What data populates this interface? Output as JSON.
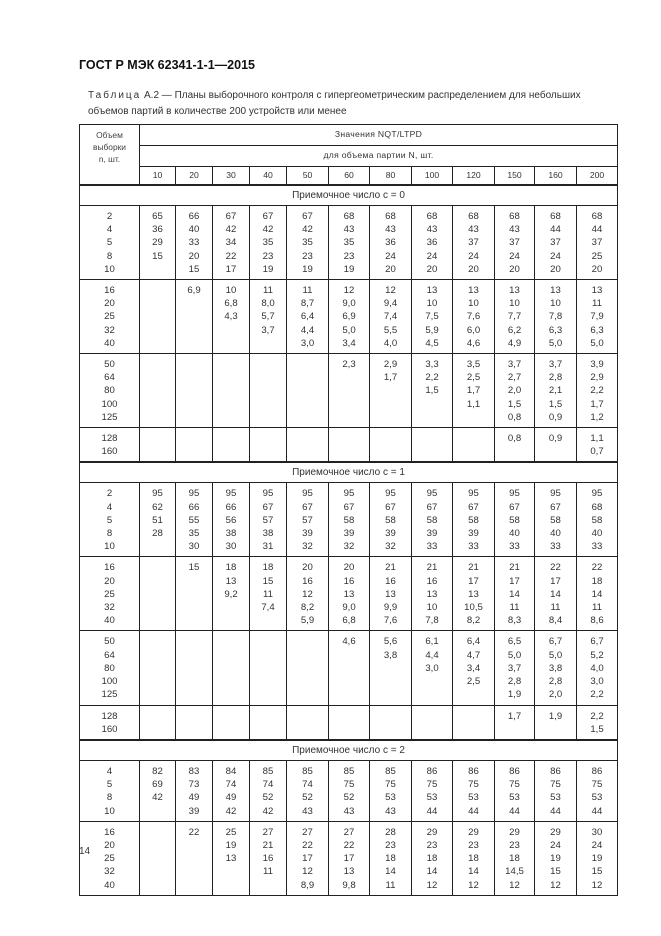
{
  "document": {
    "title": "ГОСТ Р МЭК 62341-1-1—2015",
    "caption_prefix": "Таблица",
    "caption_rest": " А.2 — Планы выборочного контроля с гипергеометрическим распределением для небольших объемов партий в количестве 200 устройств или менее",
    "page_number": "14"
  },
  "table": {
    "first_header": "Объем\nвыборки\nn, шт.",
    "header_top": "Значения NQT/LTPD",
    "header_sub": "для объема партии N, шт.",
    "lot_sizes": [
      "10",
      "20",
      "30",
      "40",
      "50",
      "60",
      "80",
      "100",
      "120",
      "150",
      "160",
      "200"
    ],
    "sections": [
      {
        "label": "Приемочное число c = 0",
        "groups": [
          {
            "n": "2\n4\n5\n8\n10",
            "cells": [
              "65\n36\n29\n15",
              "66\n40\n33\n20\n15",
              "67\n42\n34\n22\n17",
              "67\n42\n35\n23\n19",
              "67\n42\n35\n23\n19",
              "68\n43\n35\n23\n19",
              "68\n43\n36\n24\n20",
              "68\n43\n36\n24\n20",
              "68\n43\n37\n24\n20",
              "68\n43\n37\n24\n20",
              "68\n44\n37\n24\n20",
              "68\n44\n37\n25\n20"
            ]
          },
          {
            "n": "16\n20\n25\n32\n40",
            "cells": [
              "",
              "6,9",
              "10\n6,8\n4,3",
              "11\n8,0\n5,7\n3,7",
              "11\n8,7\n6,4\n4,4\n3,0",
              "12\n9,0\n6,9\n5,0\n3,4",
              "12\n9,4\n7,4\n5,5\n4,0",
              "13\n10\n7,5\n5,9\n4,5",
              "13\n10\n7,6\n6,0\n4,6",
              "13\n10\n7,7\n6,2\n4,9",
              "13\n10\n7,8\n6,3\n5,0",
              "13\n11\n7,9\n6,3\n5,0"
            ]
          },
          {
            "n": "50\n64\n80\n100\n125",
            "cells": [
              "",
              "",
              "",
              "",
              "",
              "2,3",
              "2,9\n1,7",
              "3,3\n2,2\n1,5",
              "3,5\n2,5\n1,7\n1,1",
              "3,7\n2,7\n2,0\n1,5\n0,8",
              "3,7\n2,8\n2,1\n1,5\n0,9",
              "3,9\n2,9\n2,2\n1,7\n1,2"
            ]
          },
          {
            "n": "128\n160",
            "cells": [
              "",
              "",
              "",
              "",
              "",
              "",
              "",
              "",
              "",
              "0,8",
              "0,9",
              "1,1\n0,7"
            ]
          }
        ]
      },
      {
        "label": "Приемочное число c = 1",
        "groups": [
          {
            "n": "2\n4\n5\n8\n10",
            "cells": [
              "95\n62\n51\n28",
              "95\n66\n55\n35\n30",
              "95\n66\n56\n38\n30",
              "95\n67\n57\n38\n31",
              "95\n67\n57\n39\n32",
              "95\n67\n58\n39\n32",
              "95\n67\n58\n39\n32",
              "95\n67\n58\n39\n33",
              "95\n67\n58\n39\n33",
              "95\n67\n58\n40\n33",
              "95\n67\n58\n40\n33",
              "95\n68\n58\n40\n33"
            ]
          },
          {
            "n": "16\n20\n25\n32\n40",
            "cells": [
              "",
              "15",
              "18\n13\n9,2",
              "18\n15\n11\n7,4",
              "20\n16\n12\n8,2\n5,9",
              "20\n16\n13\n9,0\n6,8",
              "21\n16\n13\n9,9\n7,6",
              "21\n16\n13\n10\n7,8",
              "21\n17\n13\n10,5\n8,2",
              "21\n17\n14\n11\n8,3",
              "22\n17\n14\n11\n8,4",
              "22\n18\n14\n11\n8,6"
            ]
          },
          {
            "n": "50\n64\n80\n100\n125",
            "cells": [
              "",
              "",
              "",
              "",
              "",
              "4,6",
              "5,6\n3,8",
              "6,1\n4,4\n3,0",
              "6,4\n4,7\n3,4\n2,5",
              "6,5\n5,0\n3,7\n2,8\n1,9",
              "6,7\n5,0\n3,8\n2,8\n2,0",
              "6,7\n5,2\n4,0\n3,0\n2,2"
            ]
          },
          {
            "n": "128\n160",
            "cells": [
              "",
              "",
              "",
              "",
              "",
              "",
              "",
              "",
              "",
              "1,7",
              "1,9",
              "2,2\n1,5"
            ]
          }
        ]
      },
      {
        "label": "Приемочное число c = 2",
        "groups": [
          {
            "n": "4\n5\n8\n10",
            "cells": [
              "82\n69\n42",
              "83\n73\n49\n39",
              "84\n74\n49\n42",
              "85\n74\n52\n42",
              "85\n74\n52\n43",
              "85\n75\n52\n43",
              "85\n75\n53\n43",
              "86\n75\n53\n44",
              "86\n75\n53\n44",
              "86\n75\n53\n44",
              "86\n75\n53\n44",
              "86\n75\n53\n44"
            ]
          },
          {
            "n": "16\n20\n25\n32\n40",
            "cells": [
              "",
              "22",
              "25\n19\n13",
              "27\n21\n16\n11",
              "27\n22\n17\n12\n8,9",
              "27\n22\n17\n13\n9,8",
              "28\n23\n18\n14\n11",
              "29\n23\n18\n14\n12",
              "29\n23\n18\n14\n12",
              "29\n23\n18\n14,5\n12",
              "29\n24\n19\n15\n12",
              "30\n24\n19\n15\n12"
            ]
          }
        ]
      }
    ]
  }
}
